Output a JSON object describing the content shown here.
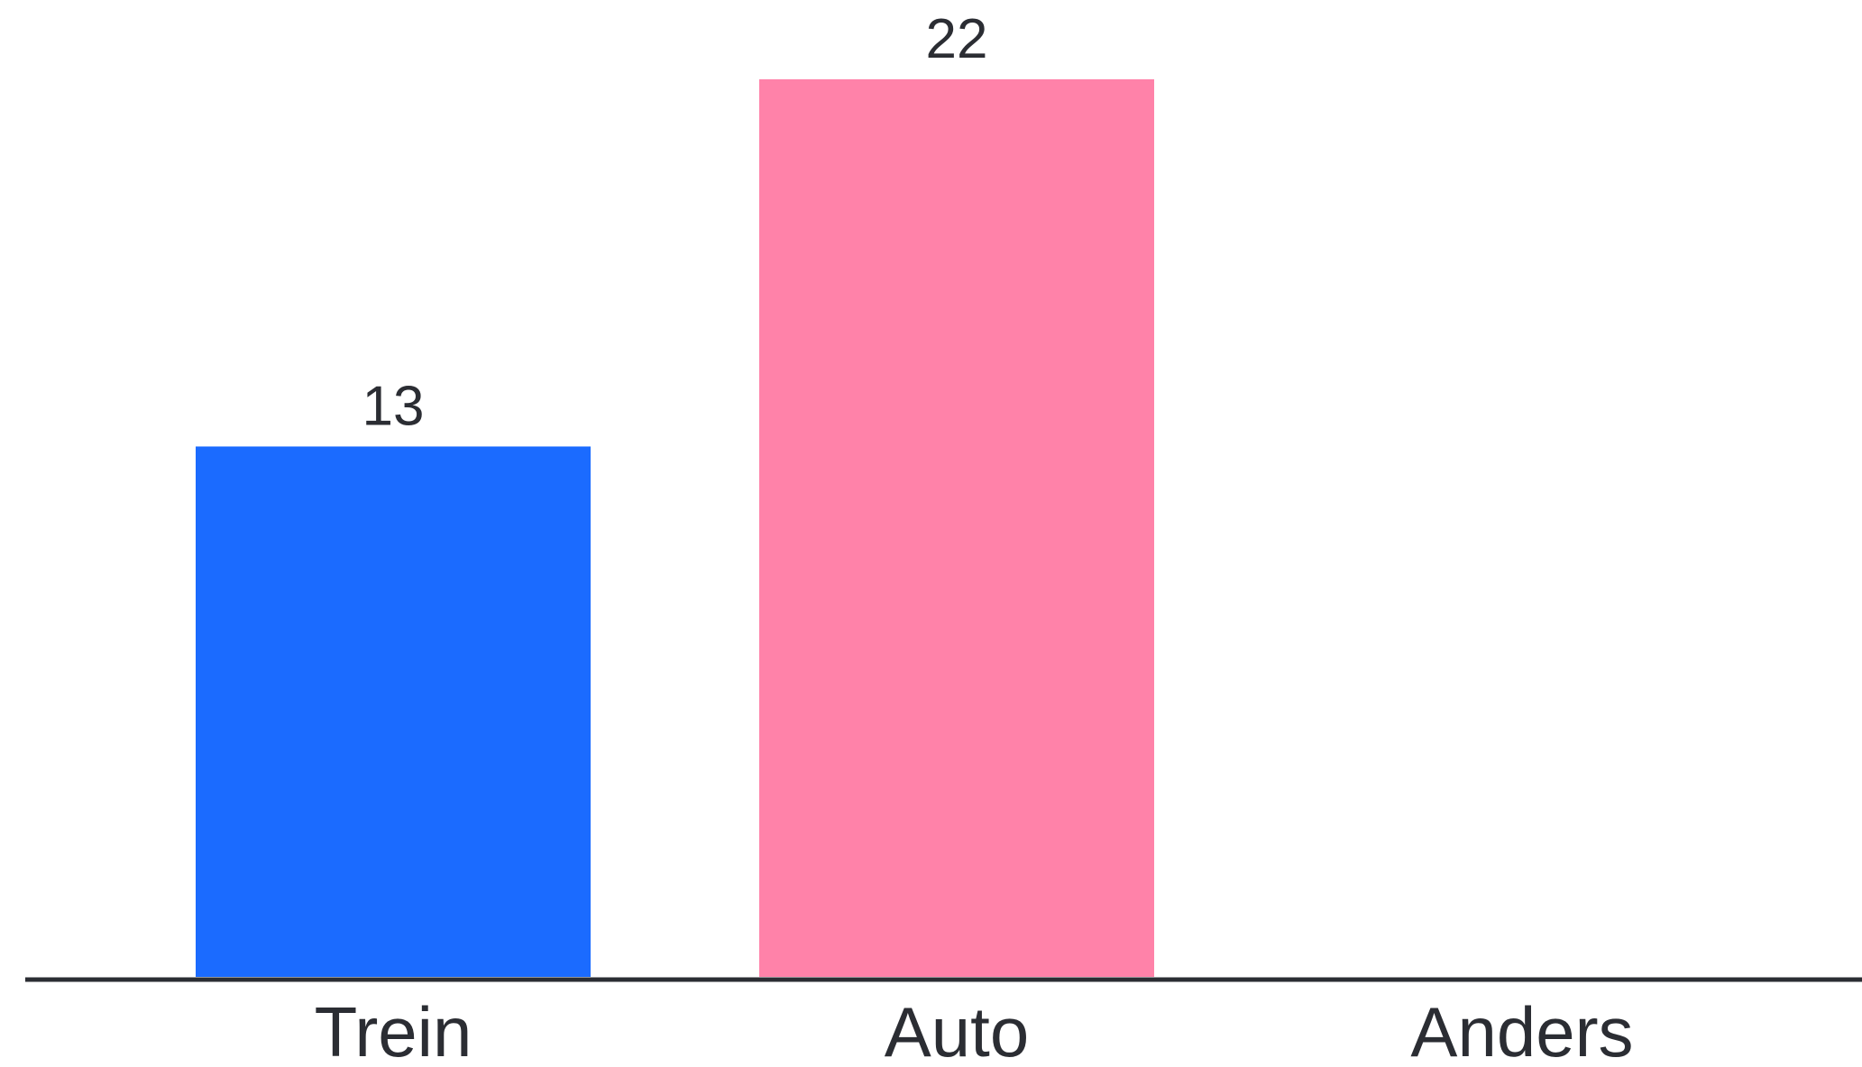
{
  "chart_data": {
    "type": "bar",
    "title": "",
    "xlabel": "",
    "ylabel": "",
    "categories": [
      "Trein",
      "Auto",
      "Anders"
    ],
    "values": [
      13,
      22,
      0
    ],
    "value_labels": [
      "13",
      "22",
      ""
    ],
    "colors": [
      "#1b6bff",
      "#ff82a9",
      "#ffffff"
    ],
    "ylim": [
      0,
      22
    ],
    "grid": false,
    "legend": "none",
    "axis_color": "#2b2d33",
    "background": "#ffffff"
  }
}
